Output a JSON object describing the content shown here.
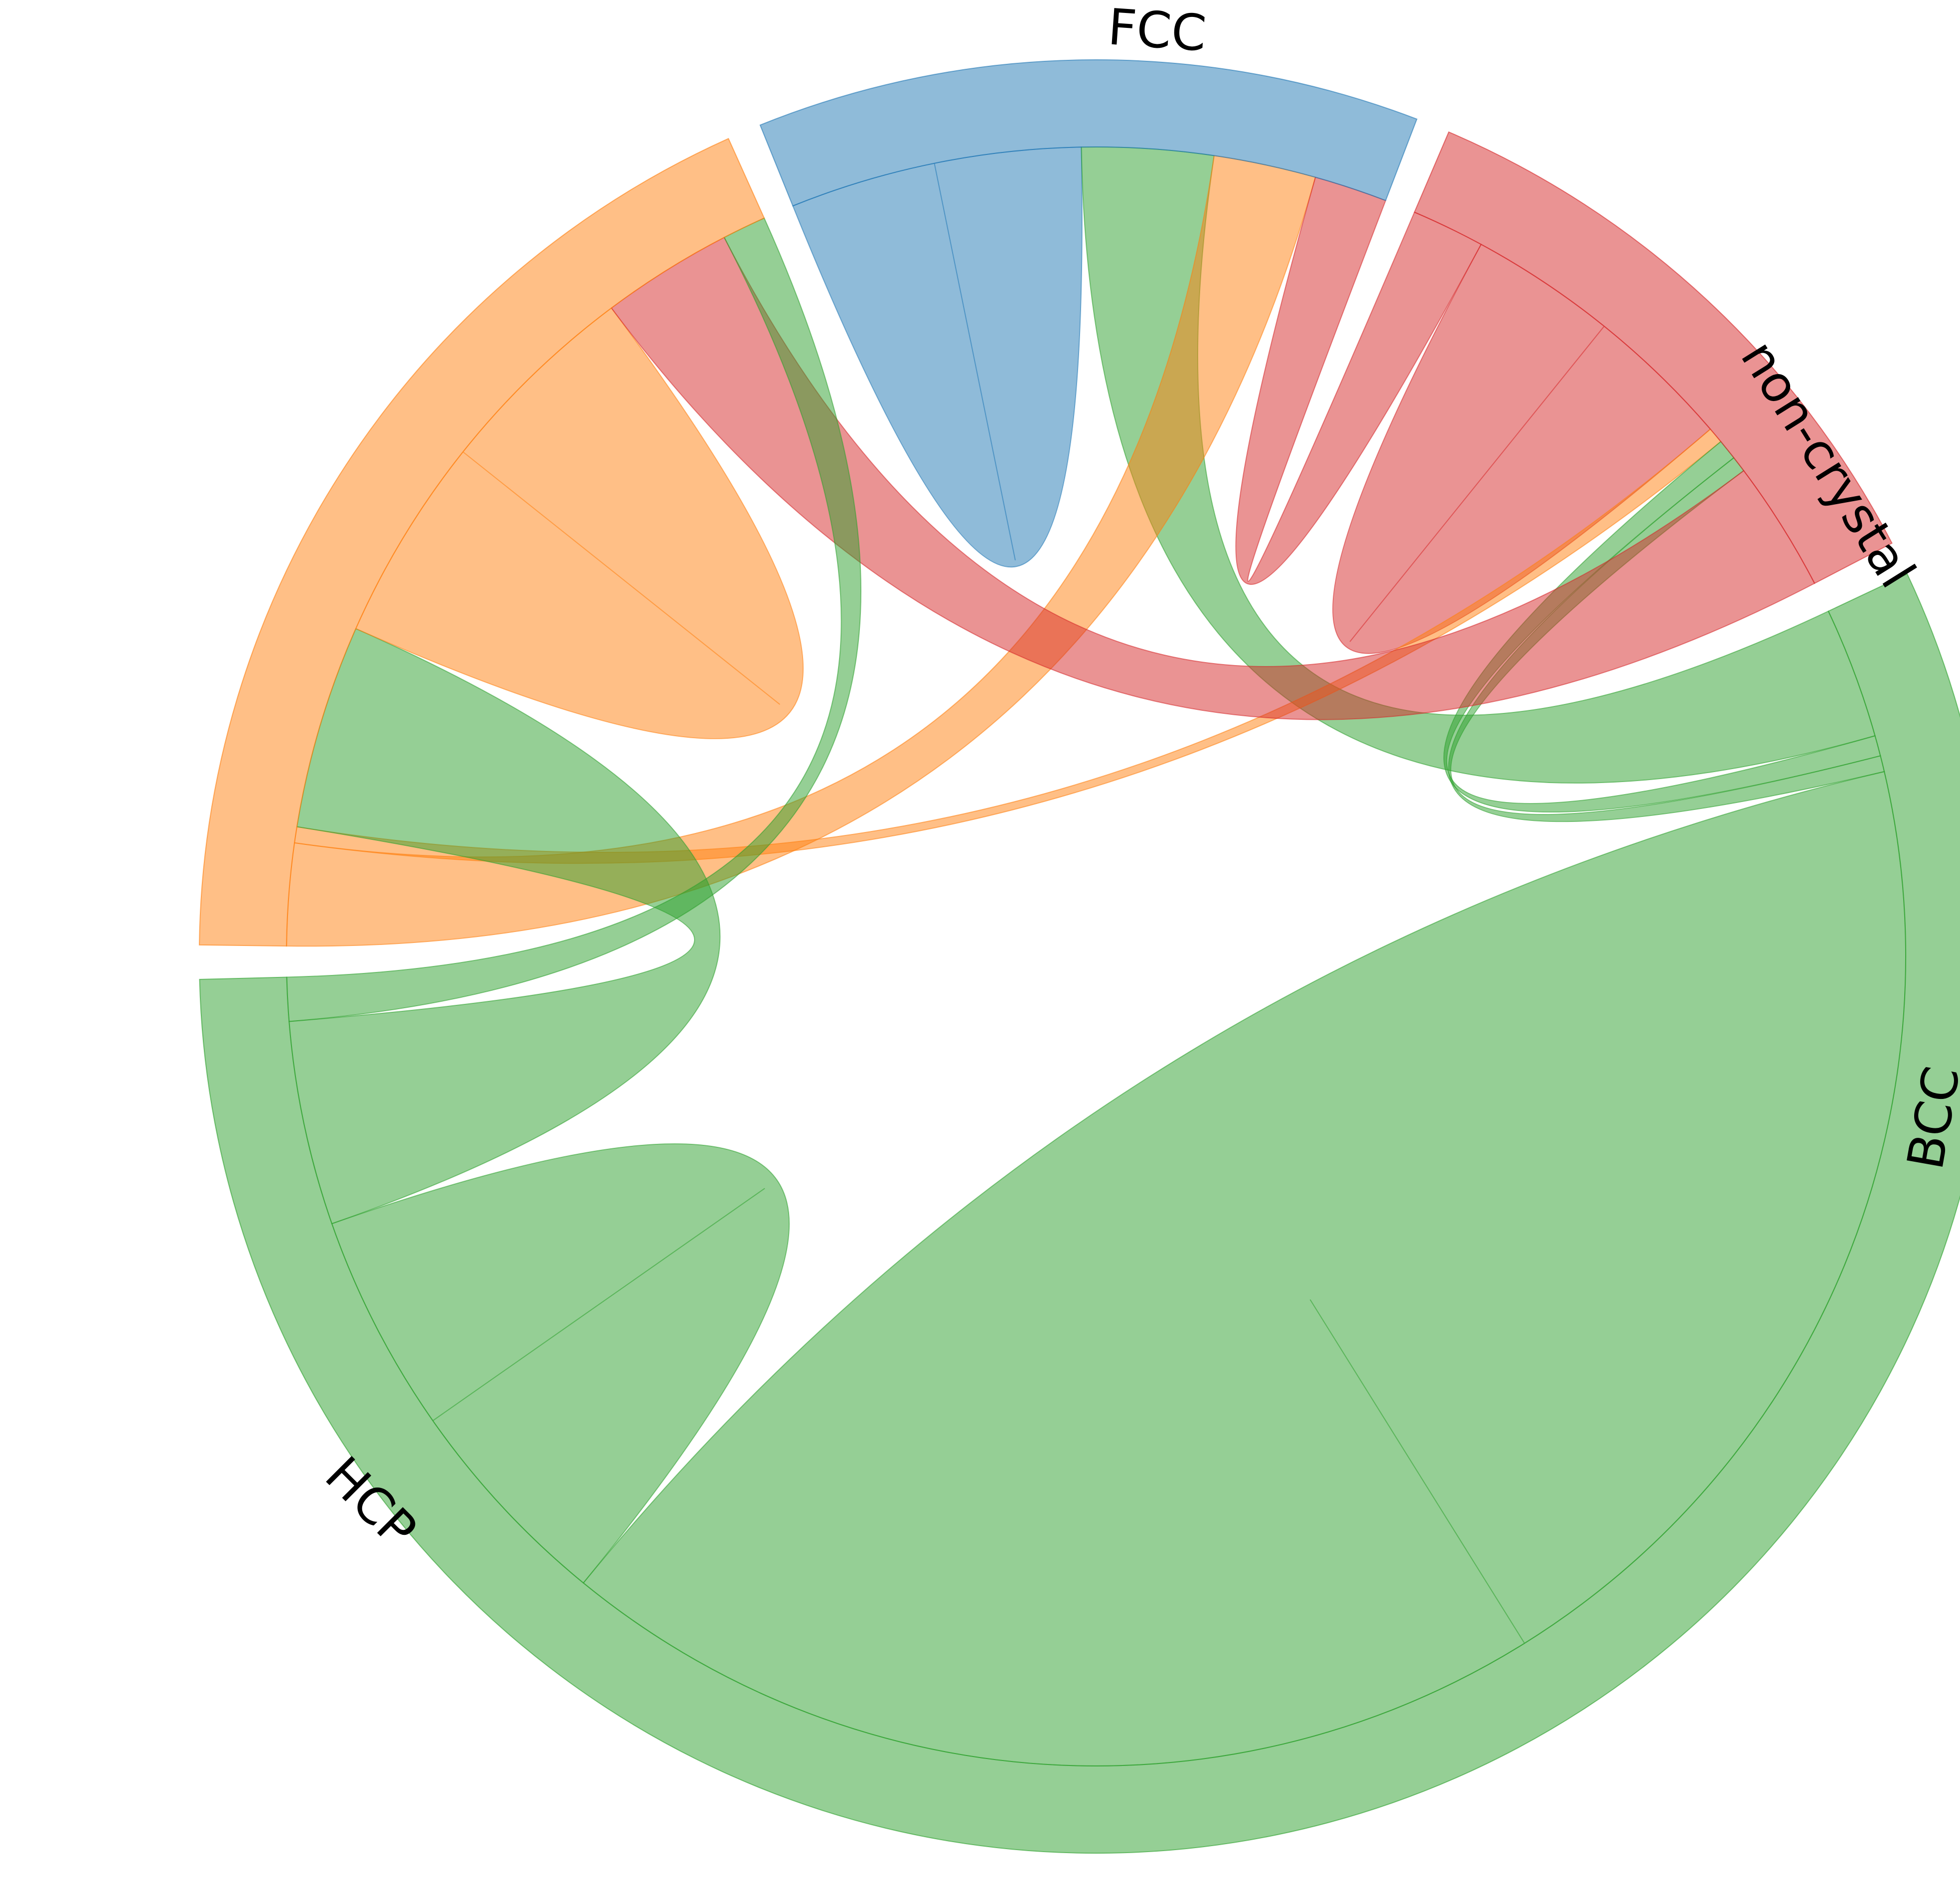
{
  "nodes": [
    {
      "id": "non-crystal",
      "label": "non-crystal",
      "color": "#1f77b4"
    },
    {
      "id": "BCC",
      "label": "BCC",
      "color": "#d62728"
    },
    {
      "id": "HCP",
      "label": "HCP",
      "color": "#2ca02c"
    },
    {
      "id": "FCC",
      "label": "FCC",
      "color": "#ff7f0e"
    }
  ],
  "links": [
    {
      "source": "non-crystal",
      "target": "non-crystal",
      "value": 10
    },
    {
      "source": "HCP",
      "target": "non-crystal",
      "value": 9
    },
    {
      "source": "FCC",
      "target": "non-crystal",
      "value": 7
    },
    {
      "source": "BCC",
      "target": "non-crystal",
      "value": 5
    },
    {
      "source": "BCC",
      "target": "BCC",
      "value": 10
    },
    {
      "source": "FCC",
      "target": "BCC",
      "value": 1.1
    },
    {
      "source": "HCP",
      "target": "BCC",
      "value": 1.4
    },
    {
      "source": "HCP",
      "target": "BCC",
      "value": 1.1
    },
    {
      "source": "HCP",
      "target": "HCP",
      "value": 68
    },
    {
      "source": "HCP",
      "target": "HCP",
      "value": 15
    },
    {
      "source": "HCP",
      "target": "FCC",
      "value": 14
    },
    {
      "source": "FCC",
      "target": "FCC",
      "value": 14
    },
    {
      "source": "BCC",
      "target": "FCC",
      "value": 9
    },
    {
      "source": "HCP",
      "target": "FCC",
      "value": 3
    }
  ]
}
